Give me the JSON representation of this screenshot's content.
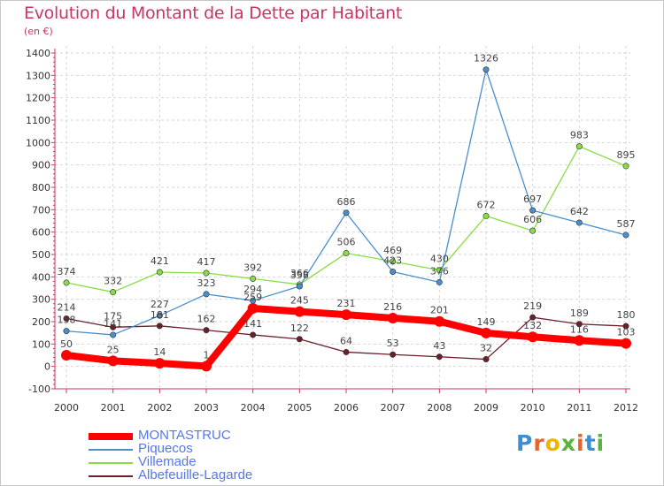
{
  "title": "Evolution du Montant de la Dette par Habitant",
  "unit_label": "(en €)",
  "brand": {
    "letters": [
      "P",
      "r",
      "o",
      "x",
      "i",
      "t",
      "i"
    ],
    "colors": [
      "#3b8fd4",
      "#e8642a",
      "#f0b300",
      "#5bb33f",
      "#e8642a",
      "#3b8fd4",
      "#5bb33f"
    ]
  },
  "chart_data": {
    "type": "line",
    "categories": [
      "2000",
      "2001",
      "2002",
      "2003",
      "2004",
      "2005",
      "2006",
      "2007",
      "2008",
      "2009",
      "2010",
      "2011",
      "2012"
    ],
    "y_ticks": [
      "-100",
      "0",
      "100",
      "200",
      "300",
      "400",
      "500",
      "600",
      "700",
      "800",
      "900",
      "1000",
      "1100",
      "1200",
      "1300",
      "1400"
    ],
    "ylim": [
      -100,
      1400
    ],
    "series": [
      {
        "name": "Albefeuille-Lagarde",
        "color": "#6b1f2a",
        "values": [
          214,
          175,
          181,
          162,
          141,
          122,
          64,
          53,
          43,
          32,
          219,
          189,
          180
        ]
      },
      {
        "name": "Villemade",
        "color": "#88dd44",
        "values": [
          374,
          332,
          421,
          417,
          392,
          366,
          506,
          469,
          430,
          672,
          606,
          983,
          895
        ]
      },
      {
        "name": "Piquecos",
        "color": "#4a8fcc",
        "values": [
          158,
          141,
          227,
          323,
          294,
          358,
          686,
          423,
          376,
          1326,
          697,
          642,
          587
        ]
      },
      {
        "name": "MONTASTRUC",
        "color": "#ff0000",
        "values": [
          50,
          25,
          14,
          1,
          259,
          245,
          231,
          216,
          201,
          149,
          132,
          116,
          103
        ]
      }
    ],
    "legend": [
      "MONTASTRUC",
      "Piquecos",
      "Villemade",
      "Albefeuille-Lagarde"
    ]
  }
}
